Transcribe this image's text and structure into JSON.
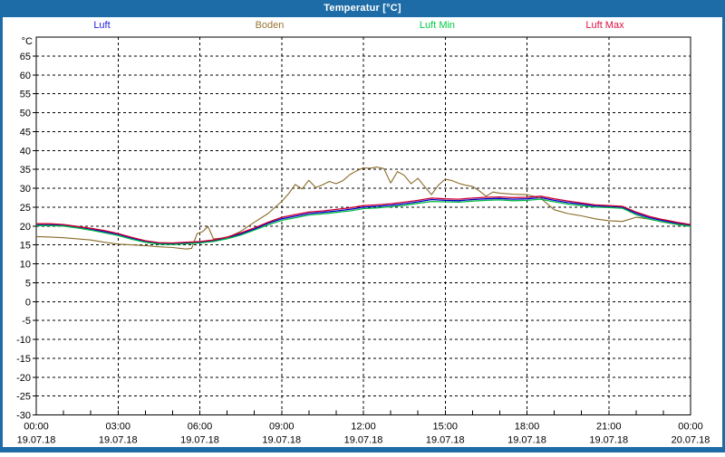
{
  "window": {
    "title": "Temperatur [°C]",
    "frame_color": "#1d6ca7",
    "titlebar_text_color": "#ffffff",
    "plot_background": "#ffffff"
  },
  "legend": {
    "position": "top",
    "items": [
      {
        "label": "Luft",
        "color": "#2222dd"
      },
      {
        "label": "Boden",
        "color": "#997733"
      },
      {
        "label": "Luft Min",
        "color": "#00cc44"
      },
      {
        "label": "Luft Max",
        "color": "#dd1144"
      }
    ]
  },
  "chart_data": {
    "type": "line",
    "title": "Temperatur [°C]",
    "ylabel": "°C",
    "xlabel": "",
    "ylim": [
      -30,
      70
    ],
    "yticks": [
      65,
      60,
      55,
      50,
      45,
      40,
      35,
      30,
      25,
      20,
      15,
      10,
      5,
      0,
      -5,
      -10,
      -15,
      -20,
      -25,
      -30
    ],
    "xlim_hours": [
      0,
      24
    ],
    "minor_xtick_every_hours": 1,
    "grid": "dashed black every 5 °C horizontally and every 3 h vertically",
    "legend_position": "top",
    "xticks": [
      {
        "hour": 0,
        "time": "00:00",
        "date": "19.07.18"
      },
      {
        "hour": 3,
        "time": "03:00",
        "date": "19.07.18"
      },
      {
        "hour": 6,
        "time": "06:00",
        "date": "19.07.18"
      },
      {
        "hour": 9,
        "time": "09:00",
        "date": "19.07.18"
      },
      {
        "hour": 12,
        "time": "12:00",
        "date": "19.07.18"
      },
      {
        "hour": 15,
        "time": "15:00",
        "date": "19.07.18"
      },
      {
        "hour": 18,
        "time": "18:00",
        "date": "19.07.18"
      },
      {
        "hour": 21,
        "time": "21:00",
        "date": "19.07.18"
      },
      {
        "hour": 24,
        "time": "00:00",
        "date": "20.07.18"
      }
    ],
    "series": [
      {
        "name": "Luft",
        "color": "#0000cc",
        "width": 1.3,
        "x": [
          0,
          0.5,
          1,
          1.5,
          2,
          2.5,
          3,
          3.5,
          4,
          4.5,
          5,
          5.5,
          6,
          6.5,
          7,
          7.5,
          8,
          8.5,
          9,
          9.5,
          10,
          10.5,
          11,
          11.5,
          12,
          12.5,
          13,
          13.5,
          14,
          14.5,
          15,
          15.5,
          16,
          16.5,
          17,
          17.5,
          18,
          18.5,
          19,
          19.5,
          20,
          20.5,
          21,
          21.5,
          22,
          22.5,
          23,
          23.5,
          24
        ],
        "values": [
          20.3,
          20.3,
          20.2,
          19.7,
          19.1,
          18.5,
          17.8,
          16.8,
          15.9,
          15.4,
          15.3,
          15.5,
          15.7,
          16.1,
          16.8,
          17.9,
          19.2,
          20.7,
          21.9,
          22.6,
          23.3,
          23.6,
          24.0,
          24.4,
          25.0,
          25.2,
          25.5,
          25.9,
          26.4,
          27.0,
          26.8,
          26.7,
          27.0,
          27.2,
          27.3,
          27.1,
          27.2,
          27.5,
          26.8,
          26.2,
          25.8,
          25.3,
          25.2,
          25.0,
          23.4,
          22.2,
          21.4,
          20.7,
          20.2
        ]
      },
      {
        "name": "Boden",
        "color": "#8a6a28",
        "width": 1.1,
        "x": [
          0,
          0.5,
          1,
          1.5,
          2,
          2.5,
          3,
          3.5,
          4,
          4.5,
          5,
          5.5,
          5.7,
          5.9,
          6.1,
          6.3,
          6.5,
          7,
          7.5,
          8,
          8.5,
          9,
          9.25,
          9.5,
          9.75,
          10,
          10.25,
          10.5,
          10.75,
          11,
          11.25,
          11.5,
          11.75,
          12,
          12.25,
          12.5,
          12.75,
          13,
          13.25,
          13.5,
          13.75,
          14,
          14.25,
          14.5,
          14.75,
          15,
          15.25,
          15.5,
          15.75,
          16,
          16.25,
          16.5,
          16.75,
          17,
          17.5,
          18,
          18.5,
          19,
          19.5,
          20,
          20.5,
          21,
          21.5,
          22,
          22.5,
          23,
          23.5,
          24
        ],
        "values": [
          17.2,
          17.1,
          16.9,
          16.6,
          16.3,
          15.7,
          15.2,
          15.0,
          14.8,
          14.5,
          14.3,
          13.9,
          14.1,
          18.0,
          18.5,
          19.9,
          16.6,
          16.9,
          18.6,
          21.0,
          23.3,
          26.5,
          28.5,
          31.0,
          29.8,
          32.1,
          30.2,
          30.9,
          31.8,
          31.2,
          32.0,
          33.6,
          34.6,
          35.4,
          35.3,
          35.6,
          35.2,
          31.4,
          34.4,
          33.4,
          31.2,
          32.6,
          30.4,
          28.3,
          30.8,
          32.4,
          32.0,
          31.3,
          30.8,
          30.5,
          29.3,
          27.9,
          29.0,
          28.7,
          28.4,
          28.3,
          27.4,
          24.3,
          23.3,
          22.7,
          21.9,
          21.4,
          21.2,
          22.3,
          21.8,
          21.0,
          20.5,
          20.0
        ]
      },
      {
        "name": "Luft Min",
        "color": "#00b844",
        "width": 1.3,
        "x": [
          0,
          0.5,
          1,
          1.5,
          2,
          2.5,
          3,
          3.5,
          4,
          4.5,
          5,
          5.5,
          6,
          6.5,
          7,
          7.5,
          8,
          8.5,
          9,
          9.5,
          10,
          10.5,
          11,
          11.5,
          12,
          12.5,
          13,
          13.5,
          14,
          14.5,
          15,
          15.5,
          16,
          16.5,
          17,
          17.5,
          18,
          18.5,
          19,
          19.5,
          20,
          20.5,
          21,
          21.5,
          22,
          22.5,
          23,
          23.5,
          24
        ],
        "values": [
          20.1,
          20.1,
          20.0,
          19.5,
          18.9,
          18.2,
          17.5,
          16.5,
          15.7,
          15.2,
          15.1,
          15.3,
          15.5,
          15.9,
          16.6,
          17.6,
          18.9,
          20.3,
          21.5,
          22.2,
          22.9,
          23.2,
          23.6,
          24.0,
          24.6,
          24.8,
          25.1,
          25.5,
          26.0,
          26.5,
          26.4,
          26.3,
          26.6,
          26.8,
          26.9,
          26.7,
          26.8,
          27.1,
          26.4,
          25.8,
          25.4,
          25.0,
          24.9,
          24.7,
          23.0,
          21.8,
          21.1,
          20.4,
          19.9
        ]
      },
      {
        "name": "Luft Max",
        "color": "#cc0033",
        "width": 1.3,
        "x": [
          0,
          0.5,
          1,
          1.5,
          2,
          2.5,
          3,
          3.5,
          4,
          4.5,
          5,
          5.5,
          6,
          6.5,
          7,
          7.5,
          8,
          8.5,
          9,
          9.5,
          10,
          10.5,
          11,
          11.5,
          12,
          12.5,
          13,
          13.5,
          14,
          14.5,
          15,
          15.5,
          16,
          16.5,
          17,
          17.5,
          18,
          18.5,
          19,
          19.5,
          20,
          20.5,
          21,
          21.5,
          22,
          22.5,
          23,
          23.5,
          24
        ],
        "values": [
          20.6,
          20.6,
          20.4,
          19.9,
          19.4,
          18.8,
          18.0,
          17.0,
          16.1,
          15.6,
          15.5,
          15.7,
          15.9,
          16.3,
          17.1,
          18.2,
          19.5,
          21.0,
          22.3,
          23.0,
          23.7,
          24.0,
          24.4,
          24.8,
          25.4,
          25.6,
          25.9,
          26.3,
          26.8,
          27.4,
          27.2,
          27.1,
          27.4,
          27.6,
          27.7,
          27.5,
          27.6,
          27.9,
          27.2,
          26.6,
          26.1,
          25.6,
          25.4,
          25.2,
          23.7,
          22.5,
          21.7,
          21.0,
          20.4
        ]
      }
    ]
  }
}
